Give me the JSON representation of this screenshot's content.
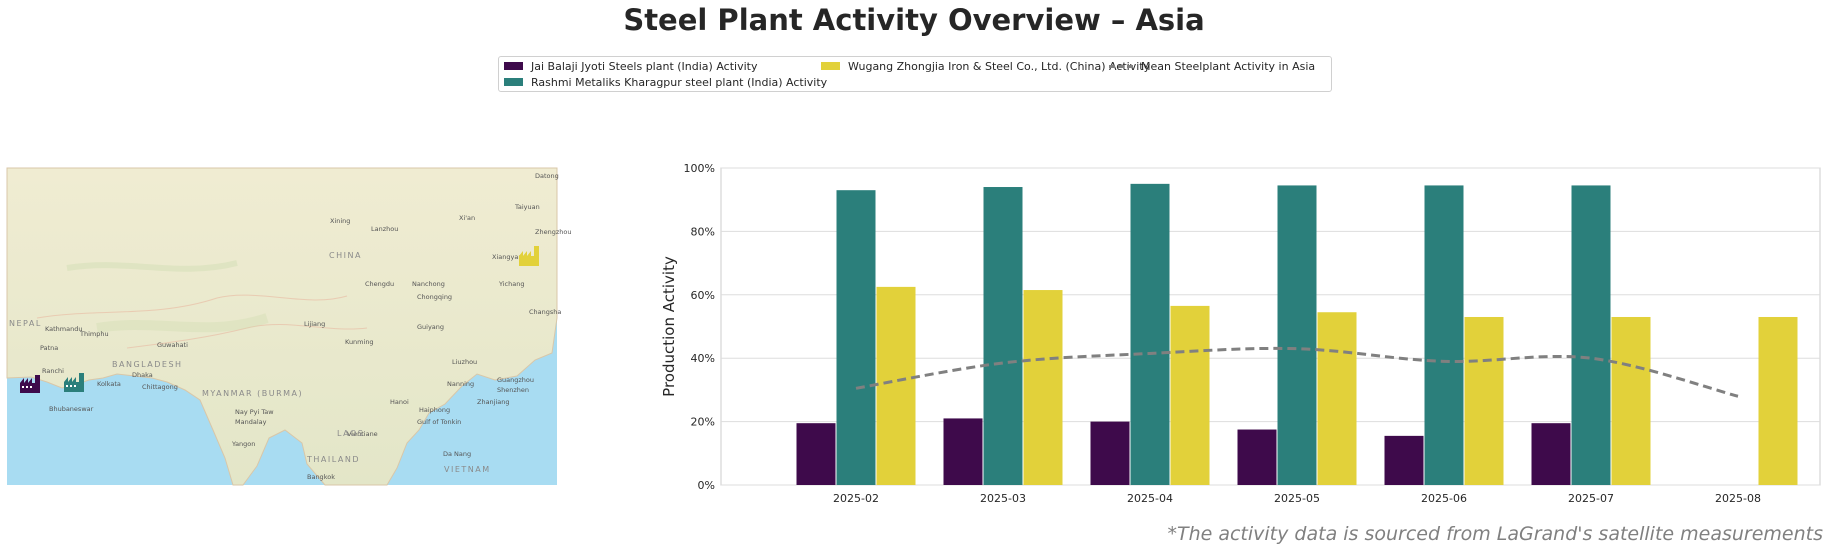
{
  "title": "Steel Plant Activity Overview – Asia",
  "footnote": "*The activity data is sourced from LaGrand's satellite measurements",
  "legend": {
    "jai": "Jai Balaji Jyoti Steels plant (India) Activity",
    "rashmi": "Rashmi Metaliks Kharagpur steel plant (India) Activity",
    "wugang": "Wugang Zhongjia Iron & Steel Co., Ltd. (China) Activity",
    "mean": "Mean Steelplant Activity in Asia"
  },
  "colors": {
    "jai": "#3e0a4b",
    "rashmi": "#2b7f7b",
    "wugang": "#e2d13a",
    "mean": "#808080"
  },
  "map": {
    "labels": [
      "Datong",
      "Taiyuan",
      "Zhengzhou",
      "Xi'an",
      "Lanzhou",
      "Xining",
      "CHINA",
      "Chengdu",
      "Nanchong",
      "Yichang",
      "Chongqing",
      "Changsha",
      "Guiyang",
      "Kunming",
      "Lijiang",
      "Guangzhou",
      "Shenzhen",
      "Nanning",
      "Zhanjiang",
      "Hanoi",
      "Haiphong",
      "Vientiane",
      "LAOS",
      "Nay Pyi Taw",
      "Mandalay",
      "MYANMAR (BURMA)",
      "Yangon",
      "THAILAND",
      "Bangkok",
      "Da Nang",
      "VIETNAM",
      "Gulf of Tonkin",
      "Dhaka",
      "BANGLADESH",
      "Kolkata",
      "Chittagong",
      "Ranchi",
      "Bhubaneswar",
      "Patna",
      "Kathmandu",
      "Thimphu",
      "Guwahati",
      "NEPAL",
      "Xiangyang",
      "Liuzhou"
    ]
  },
  "chart_data": {
    "type": "bar",
    "categories": [
      "2025-02",
      "2025-03",
      "2025-04",
      "2025-05",
      "2025-06",
      "2025-07",
      "2025-08"
    ],
    "series": [
      {
        "name": "Jai Balaji Jyoti Steels plant (India) Activity",
        "values": [
          19.5,
          21,
          20,
          17.5,
          15.5,
          19.5,
          null
        ]
      },
      {
        "name": "Rashmi Metaliks Kharagpur steel plant (India) Activity",
        "values": [
          93,
          94,
          95,
          94.5,
          94.5,
          94.5,
          null
        ]
      },
      {
        "name": "Wugang Zhongjia Iron & Steel Co., Ltd. (China) Activity",
        "values": [
          62.5,
          61.5,
          56.5,
          54.5,
          53,
          53,
          53
        ]
      },
      {
        "name": "Mean Steelplant Activity in Asia",
        "type": "line",
        "style": "dashed",
        "values": [
          30.5,
          38.5,
          41.5,
          43,
          39,
          40,
          28
        ]
      }
    ],
    "ylabel": "Production Activity",
    "ylim": [
      0,
      100
    ],
    "yticks": [
      "0%",
      "20%",
      "40%",
      "60%",
      "80%",
      "100%"
    ],
    "grid": true,
    "legend_position": "top-center"
  }
}
